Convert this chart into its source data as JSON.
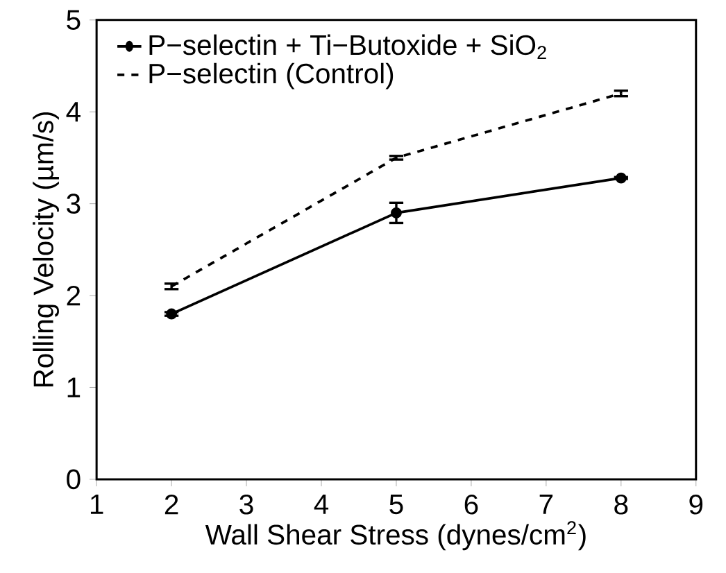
{
  "chart_data": {
    "type": "line",
    "xlabel": "Wall Shear Stress (dynes/cm$^{2}$)",
    "ylabel": "Rolling Velocity (µm/s)",
    "x": [
      2,
      5,
      8
    ],
    "series": [
      {
        "name": "P−selectin + Ti−Butoxide + SiO$_{2}$",
        "color": "#000000",
        "values": [
          1.8,
          2.9,
          3.28
        ],
        "errors": [
          0.02,
          0.11,
          0.01
        ],
        "marker": "circle",
        "line_style": "solid"
      },
      {
        "name": "P−selectin (Control)",
        "color": "#000000",
        "values": [
          2.1,
          3.5,
          4.2
        ],
        "errors": [
          0.03,
          0.02,
          0.03
        ],
        "marker": "none",
        "line_style": "dashed"
      }
    ],
    "xlim": [
      1,
      9
    ],
    "xticks": [
      1,
      2,
      3,
      4,
      5,
      6,
      7,
      8,
      9
    ],
    "ylim": [
      0,
      5
    ],
    "yticks": [
      0,
      1,
      2,
      3,
      4,
      5
    ],
    "grid": false,
    "legend": "top left"
  }
}
